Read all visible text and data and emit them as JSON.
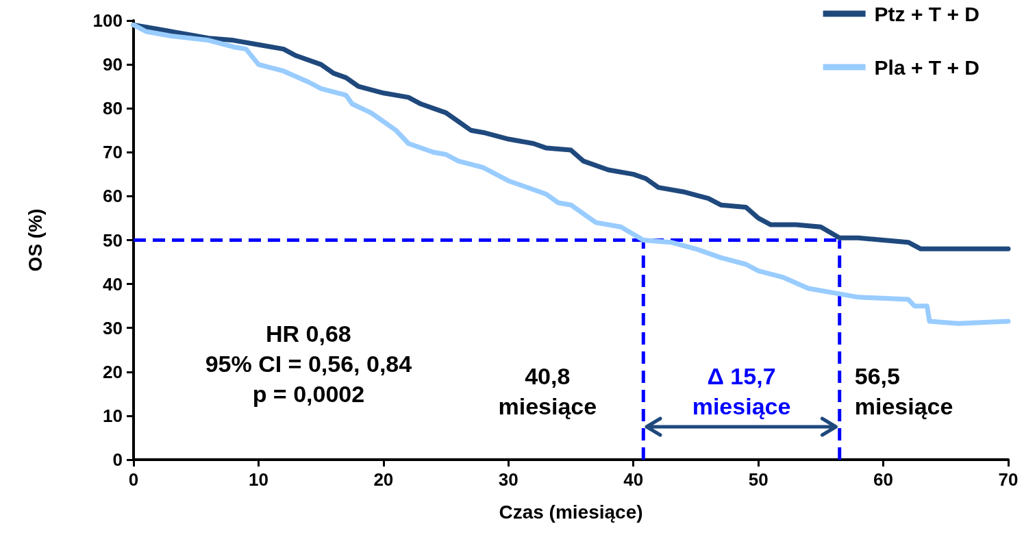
{
  "chart_data": {
    "type": "line",
    "xlabel": "Czas (miesiące)",
    "ylabel": "OS (%)",
    "xlim": [
      0,
      70
    ],
    "xticks": [
      0,
      10,
      20,
      30,
      40,
      50,
      60,
      70
    ],
    "ylim": [
      0,
      100
    ],
    "yticks": [
      0,
      10,
      20,
      30,
      40,
      50,
      60,
      70,
      80,
      90,
      100
    ],
    "grid": false,
    "legend": "top right",
    "marker": "none",
    "line_style": "solid",
    "series": [
      {
        "name": "Ptz + T + D",
        "color": "#1f497d",
        "x": [
          0,
          2,
          4,
          6,
          8,
          10,
          12,
          13,
          15,
          16,
          17,
          18,
          20,
          22,
          23,
          25,
          26,
          27,
          28,
          30,
          32,
          33,
          35,
          36,
          38,
          40,
          41,
          42,
          44,
          46,
          47,
          49,
          50,
          51,
          53,
          55,
          56.5,
          58,
          60,
          62,
          63,
          70
        ],
        "values": [
          99,
          98,
          97,
          96,
          95.5,
          94.5,
          93.5,
          92,
          90,
          88,
          87,
          85,
          83.5,
          82.5,
          81,
          79,
          77,
          75,
          74.5,
          73,
          72,
          71,
          70.5,
          68,
          66,
          65,
          64,
          62,
          61,
          59.5,
          58,
          57.5,
          55,
          53.5,
          53.5,
          53,
          50.5,
          50.5,
          50,
          49.5,
          48,
          48
        ]
      },
      {
        "name": "Pla + T + D",
        "color": "#99ccff",
        "x": [
          0,
          1,
          3,
          6,
          8,
          9,
          10,
          12,
          14,
          15,
          17,
          17.5,
          19,
          20,
          21,
          22,
          24,
          25,
          26,
          28,
          30,
          32,
          33,
          34,
          35,
          37,
          39,
          40.8,
          43,
          45,
          47,
          49,
          50,
          52,
          54,
          56,
          58,
          62,
          62.5,
          63.5,
          63.7,
          66,
          70
        ],
        "values": [
          99,
          97.5,
          96.5,
          95.5,
          94,
          93.5,
          90,
          88.5,
          86,
          84.5,
          83,
          81,
          79,
          77,
          75,
          72,
          70,
          69.5,
          68,
          66.5,
          63.5,
          61.5,
          60.5,
          58.5,
          58,
          54,
          53,
          50,
          49.5,
          48,
          46,
          44.5,
          43,
          41.5,
          39,
          38,
          37,
          36.5,
          35,
          35,
          31.5,
          31,
          31.5
        ]
      }
    ],
    "ref_lines": [
      {
        "axis": "y",
        "value": 50,
        "color": "#0000ff",
        "line_style": "dashed"
      },
      {
        "axis": "x",
        "value": 40.8,
        "label": "40,8\nmiesiące",
        "color": "#0000ff",
        "line_style": "dashed"
      },
      {
        "axis": "x",
        "value": 56.5,
        "label": "56,5\nmiesiące",
        "color": "#0000ff",
        "line_style": "dashed"
      }
    ],
    "annotations": [
      "HR 0,68\n95% CI = 0,56, 0,84\np = 0,0002",
      "Δ 15,7\nmiesiące"
    ]
  }
}
